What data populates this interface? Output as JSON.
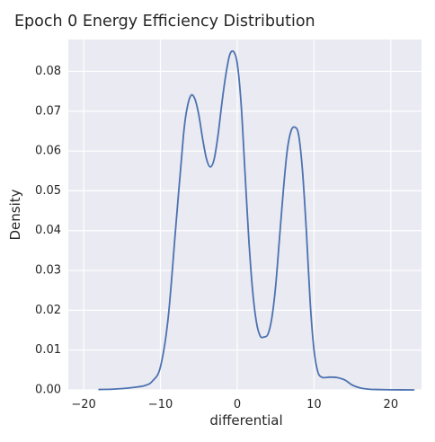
{
  "chart_data": {
    "type": "line",
    "title": "Epoch 0 Energy Efficiency Distribution",
    "xlabel": "differential",
    "ylabel": "Density",
    "xlim": [
      -22,
      24
    ],
    "ylim": [
      0,
      0.088
    ],
    "xticks": [
      -20,
      -10,
      0,
      10,
      20
    ],
    "xtick_labels": [
      "−20",
      "−10",
      "0",
      "10",
      "20"
    ],
    "yticks": [
      0,
      0.01,
      0.02,
      0.03,
      0.04,
      0.05,
      0.06,
      0.07,
      0.08
    ],
    "ytick_labels": [
      "0.00",
      "0.01",
      "0.02",
      "0.03",
      "0.04",
      "0.05",
      "0.06",
      "0.07",
      "0.08"
    ],
    "grid": true,
    "series": [
      {
        "color": "#4c72b0",
        "x": [
          -18,
          -16,
          -14,
          -12,
          -11,
          -10,
          -9,
          -8,
          -7,
          -6.5,
          -6,
          -5.5,
          -5,
          -4.5,
          -4,
          -3.5,
          -3,
          -2.5,
          -2,
          -1.5,
          -1,
          -0.5,
          0,
          0.5,
          1,
          1.5,
          2,
          2.5,
          3,
          3.5,
          4,
          4.5,
          5,
          5.5,
          6,
          6.5,
          7,
          7.5,
          8,
          8.5,
          9,
          9.5,
          10,
          10.5,
          11,
          11.5,
          12,
          13,
          14,
          15,
          16,
          17,
          18,
          20,
          23
        ],
        "y": [
          0.0001,
          0.0002,
          0.0005,
          0.0011,
          0.0023,
          0.0058,
          0.018,
          0.041,
          0.064,
          0.071,
          0.074,
          0.073,
          0.069,
          0.063,
          0.058,
          0.056,
          0.058,
          0.064,
          0.072,
          0.079,
          0.084,
          0.085,
          0.082,
          0.072,
          0.055,
          0.038,
          0.025,
          0.017,
          0.0135,
          0.0133,
          0.014,
          0.018,
          0.026,
          0.038,
          0.05,
          0.06,
          0.065,
          0.066,
          0.064,
          0.055,
          0.04,
          0.022,
          0.01,
          0.0045,
          0.0032,
          0.0031,
          0.0032,
          0.0031,
          0.0025,
          0.0012,
          0.0005,
          0.0002,
          0.0001,
          3e-05,
          0.0
        ]
      }
    ]
  },
  "colors": {
    "plot_background": "#eaeaf2",
    "grid": "#ffffff",
    "line": "#4c72b0",
    "text": "#262626"
  }
}
